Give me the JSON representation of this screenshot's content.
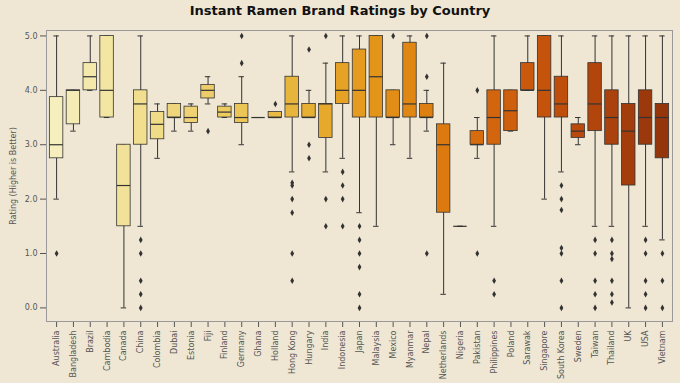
{
  "chart_data": {
    "type": "box",
    "title": "Instant Ramen Brand Ratings by Country",
    "y_label": "Rating (Higher is Better)",
    "ylim": [
      -0.25,
      5.1
    ],
    "yticks": [
      0,
      1,
      2,
      3,
      4,
      5
    ],
    "categories": [
      "Australia",
      "Bangladesh",
      "Brazil",
      "Cambodia",
      "Canada",
      "China",
      "Colombia",
      "Dubai",
      "Estonia",
      "Fiji",
      "Finland",
      "Germany",
      "Ghana",
      "Holland",
      "Hong Kong",
      "Hungary",
      "India",
      "Indonesia",
      "Japan",
      "Malaysia",
      "Mexico",
      "Myanmar",
      "Nepal",
      "Netherlands",
      "Nigeria",
      "Pakistan",
      "Philippines",
      "Poland",
      "Sarawak",
      "Singapore",
      "South Korea",
      "Sweden",
      "Taiwan",
      "Thailand",
      "UK",
      "USA",
      "Vietnam"
    ],
    "whisker_low": [
      2,
      3.25,
      4,
      3.5,
      0,
      1.5,
      2.75,
      3.25,
      3.25,
      3.75,
      3.5,
      3,
      3.5,
      3.5,
      2.5,
      3.5,
      2.5,
      2.75,
      1.75,
      1.5,
      3,
      2.75,
      3.25,
      0.25,
      1.5,
      2.75,
      1.5,
      3.25,
      4,
      2,
      2.5,
      3,
      1.5,
      1.5,
      0,
      1.5,
      1.25
    ],
    "q1": [
      2.75,
      3.375,
      4,
      3.5,
      1.5,
      3,
      3.1,
      3.5,
      3.4,
      3.85,
      3.5,
      3.4,
      3.5,
      3.5,
      3.5,
      3.5,
      3.125,
      3.75,
      3.5,
      3.5,
      3.5,
      3.5,
      3.5,
      1.75,
      1.5,
      3,
      3,
      3.25,
      4,
      3.5,
      3.5,
      3.125,
      3.25,
      3,
      2.25,
      3,
      2.75
    ],
    "median": [
      3,
      4,
      4.25,
      4,
      2.25,
      3.75,
      3.375,
      3.5,
      3.5,
      4,
      3.6,
      3.5,
      3.5,
      3.5,
      3.75,
      3.5,
      3.75,
      4,
      4,
      4.25,
      3.5,
      3.75,
      3.5,
      3,
      1.5,
      3,
      3.5,
      3.625,
      4,
      4,
      3.75,
      3.25,
      3.75,
      3.5,
      3.25,
      3.5,
      3.5
    ],
    "q3": [
      3.875,
      4,
      4.5,
      5,
      3,
      4,
      3.6,
      3.75,
      3.7,
      4.1,
      3.7,
      3.75,
      3.5,
      3.6,
      4.25,
      3.75,
      3.75,
      4.5,
      4.75,
      5,
      4,
      4.875,
      3.75,
      3.375,
      1.5,
      3.25,
      4,
      4,
      4.5,
      5,
      4.25,
      3.375,
      4.5,
      4,
      3.75,
      4,
      3.75
    ],
    "whisker_high": [
      5,
      4,
      5,
      5,
      3,
      5,
      3.75,
      3.75,
      3.75,
      4.25,
      3.75,
      4.25,
      3.5,
      3.5,
      5,
      4,
      4.5,
      5,
      5,
      5,
      4,
      5,
      4,
      4.5,
      1.5,
      3.5,
      5,
      4,
      5,
      5,
      5,
      3.5,
      5,
      5,
      5,
      5,
      5
    ],
    "outliers": [
      [
        1
      ],
      [],
      [],
      [],
      [],
      [
        1.25,
        1,
        0.5,
        0.25,
        0
      ],
      [],
      [],
      [],
      [
        3.25
      ],
      [],
      [
        4.5,
        5
      ],
      [],
      [
        3.75
      ],
      [
        2.3,
        2.25,
        2,
        1.75,
        1,
        0.5
      ],
      [
        4.75,
        3,
        2.75
      ],
      [
        5,
        2,
        1.5
      ],
      [
        2.5,
        2.25,
        2,
        1.5
      ],
      [
        1.5,
        1.25,
        1,
        0.75,
        0.25,
        0
      ],
      [],
      [
        5
      ],
      [],
      [
        5,
        4.25,
        1
      ],
      [],
      [],
      [
        4,
        1
      ],
      [
        0.5,
        0.25
      ],
      [],
      [],
      [],
      [
        2.25,
        2,
        1.8,
        1.1,
        1,
        0.5,
        0
      ],
      [],
      [
        1.25,
        1,
        0.5,
        0.25,
        0
      ],
      [
        1.25,
        1,
        0.9,
        0.5,
        0.25,
        0.1
      ],
      [],
      [
        1.25,
        1,
        0.5,
        0.25,
        0
      ],
      [
        1,
        0.5,
        0
      ]
    ],
    "colors": [
      "#f6eebd",
      "#f5ebb4",
      "#f4e8ab",
      "#f3e5a2",
      "#f2e198",
      "#f1de8f",
      "#f0db86",
      "#efd67c",
      "#eed273",
      "#edcd69",
      "#eccb60",
      "#ebc556",
      "#eac04d",
      "#e9bb45",
      "#e8b53c",
      "#e7af33",
      "#e6a92c",
      "#e5a225",
      "#e49b1f",
      "#e3951a",
      "#e28e16",
      "#e08713",
      "#de8011",
      "#dc7a10",
      "#d9730f",
      "#d66c0e",
      "#d2650e",
      "#ce5f0d",
      "#ca590d",
      "#c5530c",
      "#bf4e0c",
      "#b9490c",
      "#b2450c",
      "#ab410c",
      "#a43d0c",
      "#9c390c",
      "#95350c"
    ]
  }
}
